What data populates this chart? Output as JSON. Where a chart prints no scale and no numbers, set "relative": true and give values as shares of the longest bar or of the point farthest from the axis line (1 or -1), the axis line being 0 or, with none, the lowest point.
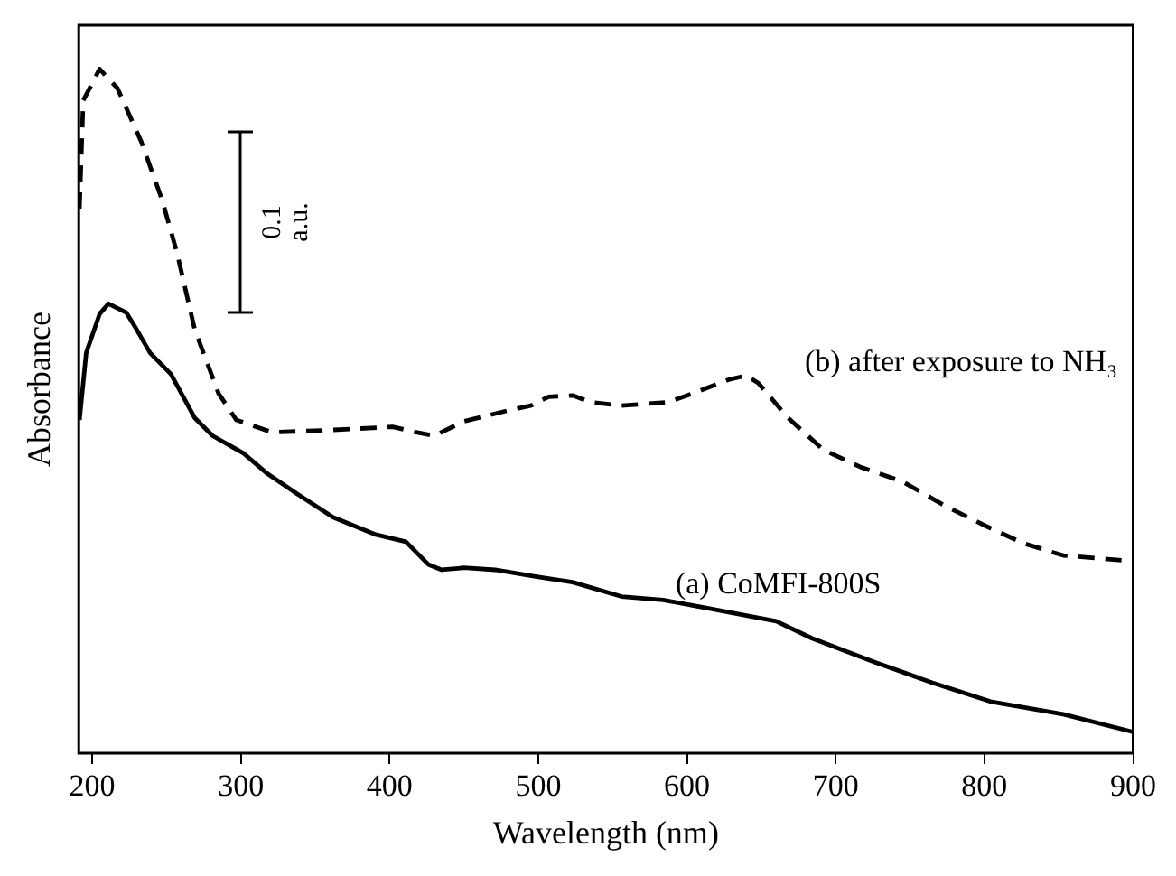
{
  "chart_data": {
    "type": "line",
    "xlabel": "Wavelength (nm)",
    "ylabel": "Absorbance",
    "relative": true,
    "xlim": [
      191,
      900
    ],
    "xticks": [
      200,
      300,
      400,
      500,
      600,
      700,
      800,
      900
    ],
    "legend": false,
    "grid": false,
    "marker": "none",
    "annotations": [
      "0.1 a.u."
    ],
    "series": [
      {
        "name": "(a) CoMFI-800S",
        "color": "#000000",
        "line_style": "solid",
        "x": [
          191.5,
          196,
          205,
          211,
          223,
          230,
          239,
          253,
          269,
          281,
          302,
          317,
          338,
          362,
          390,
          411,
          426,
          435,
          450,
          471,
          499,
          523,
          556,
          584,
          616,
          660,
          684,
          725,
          765,
          805,
          853,
          900
        ],
        "values": [
          0.487,
          0.585,
          0.642,
          0.657,
          0.644,
          0.619,
          0.585,
          0.554,
          0.49,
          0.464,
          0.438,
          0.41,
          0.379,
          0.345,
          0.32,
          0.309,
          0.276,
          0.268,
          0.271,
          0.268,
          0.258,
          0.25,
          0.229,
          0.224,
          0.211,
          0.193,
          0.168,
          0.134,
          0.103,
          0.075,
          0.057,
          0.031
        ]
      },
      {
        "name": "(b) after exposure to NH₃",
        "color": "#000000",
        "line_style": "dashed",
        "x": [
          191.5,
          194,
          205,
          217,
          233,
          247,
          257,
          269,
          285,
          297,
          321,
          357,
          402,
          418,
          430,
          450,
          478,
          495,
          507,
          523,
          535,
          556,
          587,
          604,
          628,
          640,
          648,
          668,
          692,
          717,
          745,
          774,
          801,
          826,
          853,
          898
        ],
        "values": [
          0.796,
          0.954,
          1.0,
          0.972,
          0.894,
          0.809,
          0.732,
          0.619,
          0.526,
          0.487,
          0.469,
          0.472,
          0.477,
          0.469,
          0.464,
          0.485,
          0.5,
          0.508,
          0.521,
          0.523,
          0.513,
          0.508,
          0.513,
          0.526,
          0.546,
          0.552,
          0.541,
          0.49,
          0.443,
          0.418,
          0.397,
          0.361,
          0.332,
          0.307,
          0.289,
          0.281
        ]
      }
    ]
  }
}
